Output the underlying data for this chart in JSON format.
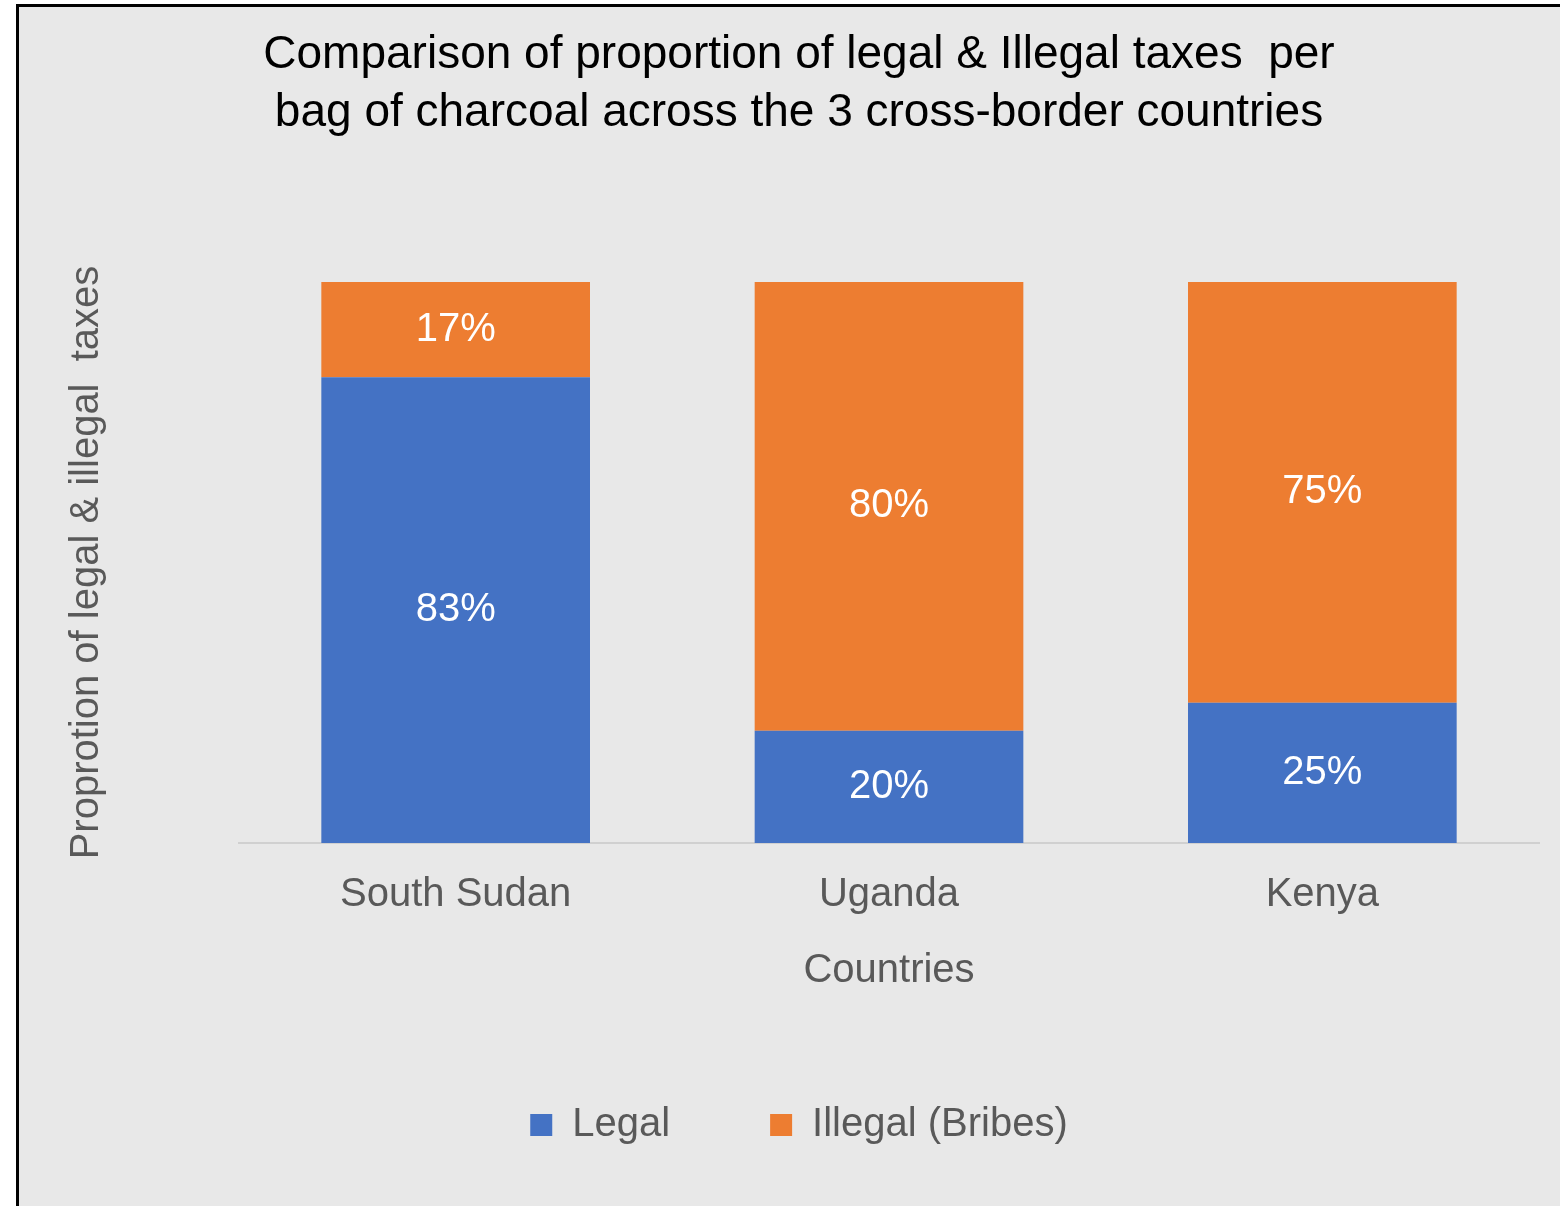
{
  "chart_data": {
    "type": "bar",
    "title": "Comparison of proportion of legal & Illegal taxes  per bag of charcoal across the 3 cross-border countries",
    "xlabel": "Countries",
    "ylabel": "Proprotion of legal & illegal  taxes",
    "categories": [
      "South Sudan",
      "Uganda",
      "Kenya"
    ],
    "stacked": true,
    "data_labels": true,
    "legend": "bottom",
    "grid": false,
    "tick_labels": "x",
    "series": [
      {
        "name": "Legal",
        "color": "#4472c4",
        "values": [
          83,
          20,
          25
        ],
        "value_labels": [
          "83%",
          "20%",
          "25%"
        ]
      },
      {
        "name": "Illegal (Bribes)",
        "color": "#ed7d31",
        "values": [
          17,
          80,
          75
        ],
        "value_labels": [
          "17%",
          "80%",
          "75%"
        ]
      }
    ]
  }
}
